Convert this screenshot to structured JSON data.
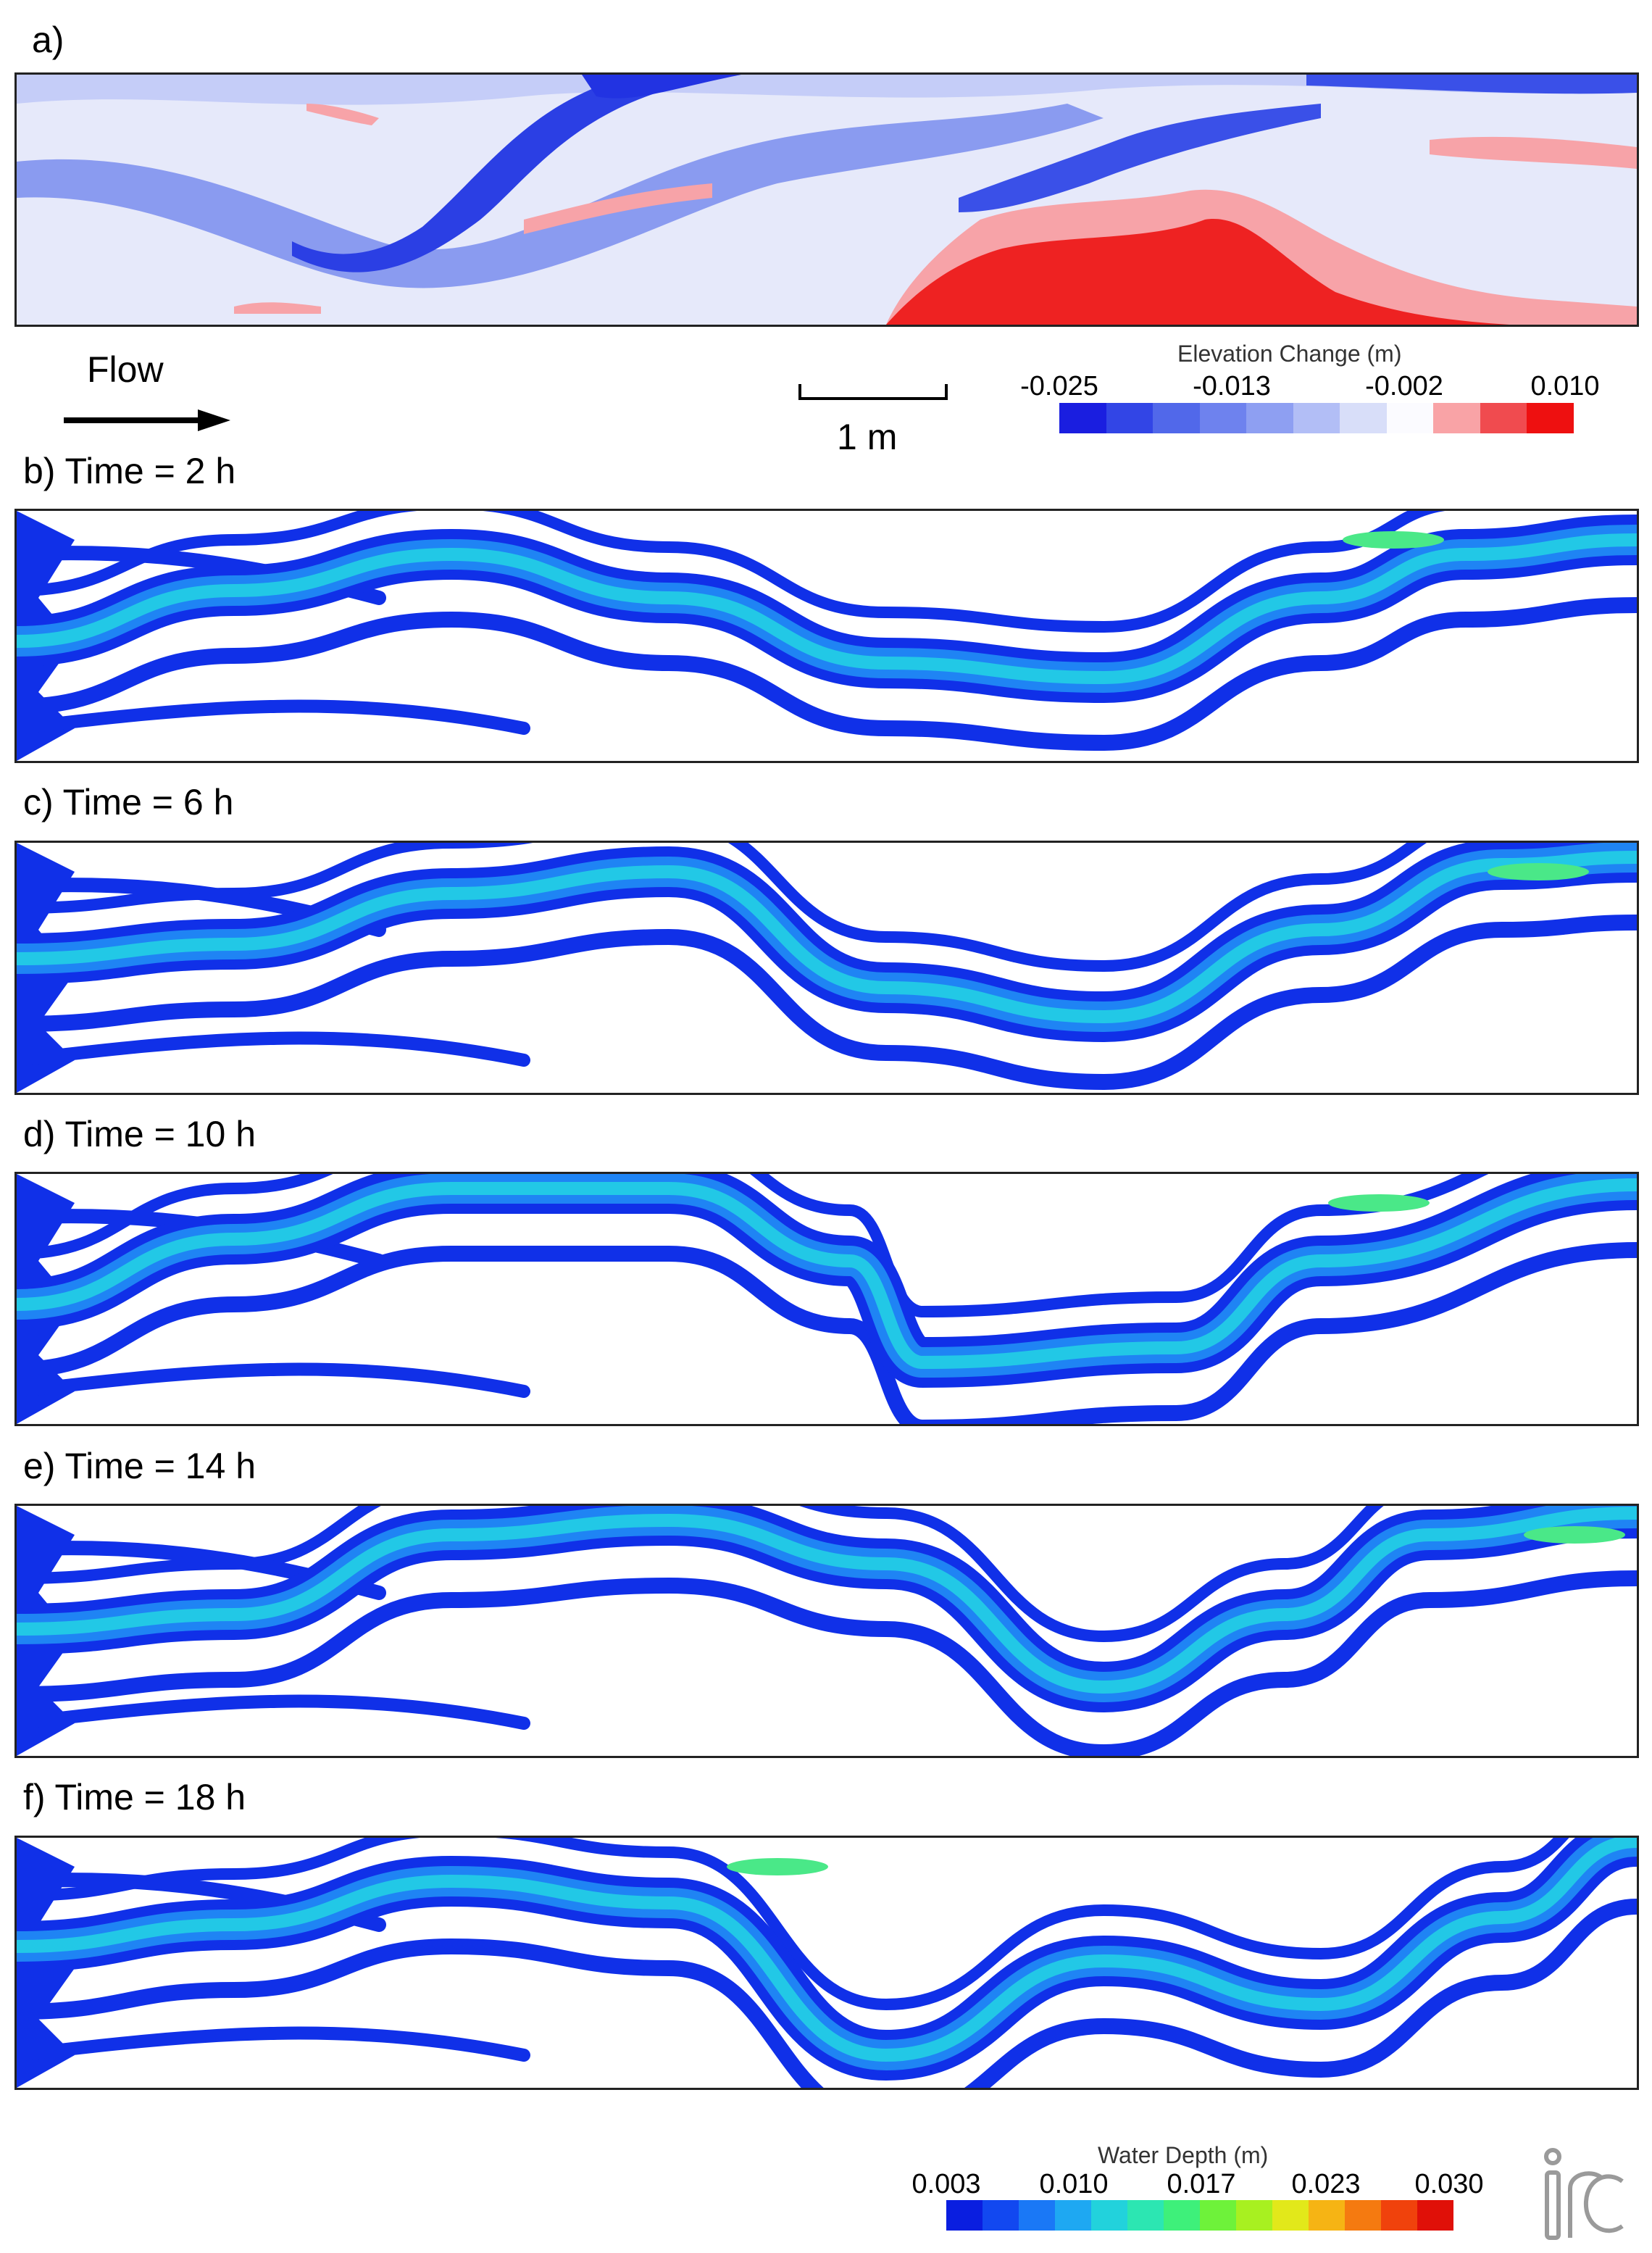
{
  "panel_a": {
    "label": "a)",
    "colors": {
      "deep": "#1a2be0",
      "mid": "#6f82ee",
      "light": "#c5cdf8",
      "pale": "#eef0fb",
      "pink": "#f7a3a8",
      "red": "#ee2222"
    }
  },
  "flow": {
    "label": "Flow"
  },
  "scale_bar": {
    "label": "1 m"
  },
  "elevation_legend": {
    "title": "Elevation Change (m)",
    "ticks": [
      "-0.025",
      "-0.013",
      "-0.002",
      "0.010"
    ],
    "colors": [
      "#1a1ee0",
      "#3245e6",
      "#5168ea",
      "#6e82ee",
      "#8e9ff2",
      "#b2bef6",
      "#d8def9",
      "#fbfbff",
      "#f9a3a6",
      "#f04b4f",
      "#ee1010"
    ]
  },
  "panels": [
    {
      "label": "b) Time = 2 h"
    },
    {
      "label": "c) Time = 6 h"
    },
    {
      "label": "d) Time = 10 h"
    },
    {
      "label": "e) Time = 14 h"
    },
    {
      "label": "f) Time = 18 h"
    }
  ],
  "depth_legend": {
    "title": "Water Depth (m)",
    "ticks": [
      "0.003",
      "0.010",
      "0.017",
      "0.023",
      "0.030"
    ],
    "colors": [
      "#0a1ee0",
      "#1248f0",
      "#1a78f6",
      "#1ea8f2",
      "#22d2dc",
      "#2ce6b2",
      "#3ef07a",
      "#6ef23a",
      "#a8f020",
      "#e2e81a",
      "#f6b414",
      "#f57a10",
      "#f0420c",
      "#e01008"
    ]
  },
  "depth_colors": {
    "shallow": "#1030e8",
    "mid": "#1f84f4",
    "cyan": "#22c8e6",
    "green": "#4ae888",
    "yellow": "#e8e020",
    "red": "#e83010"
  },
  "logo": {
    "text": "iRIC"
  }
}
